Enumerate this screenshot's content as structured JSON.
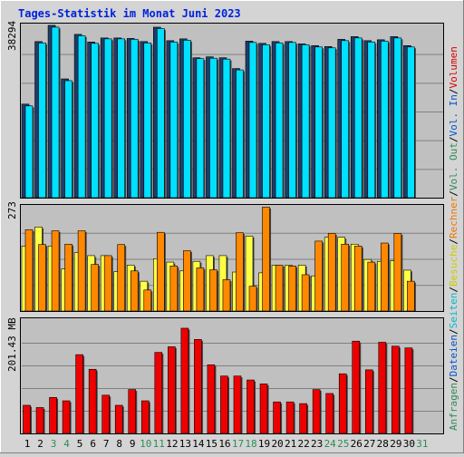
{
  "title": "Tages-Statistik im Monat Juni 2023",
  "colors": {
    "background": "#d4d4d4",
    "plot": "#c0c0c0",
    "grid": "#808080",
    "title": "#0022dd",
    "weekday": "#000000",
    "weekend": "#2e8b57"
  },
  "legend_right": [
    {
      "text": "Anfragen",
      "color": "#2e8b57"
    },
    {
      "text": "/",
      "color": "#000000"
    },
    {
      "text": "Dateien",
      "color": "#0055cc"
    },
    {
      "text": "/",
      "color": "#000000"
    },
    {
      "text": "Seiten",
      "color": "#00bbcc"
    },
    {
      "text": "/",
      "color": "#000000"
    },
    {
      "text": "Besuche",
      "color": "#cccc00"
    },
    {
      "text": "/",
      "color": "#000000"
    },
    {
      "text": "Rechner",
      "color": "#ee7700"
    },
    {
      "text": "/",
      "color": "#000000"
    },
    {
      "text": "Vol. Out",
      "color": "#2e8b57"
    },
    {
      "text": "/",
      "color": "#000000"
    },
    {
      "text": "Vol. In",
      "color": "#0055cc"
    },
    {
      "text": "/",
      "color": "#000000"
    },
    {
      "text": "Volumen",
      "color": "#dd0000"
    }
  ],
  "chart_data": [
    {
      "type": "bar",
      "panel": "hits",
      "ylabel": "38294",
      "ymax": 38294,
      "categories": [
        "1",
        "2",
        "3",
        "4",
        "5",
        "6",
        "7",
        "8",
        "9",
        "10",
        "11",
        "12",
        "13",
        "14",
        "15",
        "16",
        "17",
        "18",
        "19",
        "20",
        "21",
        "22",
        "23",
        "24",
        "25",
        "26",
        "27",
        "28",
        "29",
        "30"
      ],
      "weekend_days": [
        "3",
        "4",
        "10",
        "11",
        "17",
        "18",
        "24",
        "25"
      ],
      "series": [
        {
          "name": "Anfragen",
          "color": "#1f3d6b",
          "values": [
            20800,
            34700,
            38300,
            26400,
            36300,
            34600,
            35500,
            35500,
            35400,
            34700,
            37900,
            34900,
            35300,
            31100,
            31300,
            31100,
            28700,
            34800,
            34300,
            34700,
            34700,
            34200,
            33800,
            33600,
            35200,
            35800,
            34900,
            35100,
            35800,
            33800
          ]
        },
        {
          "name": "Dateien",
          "color": "#00e0ff",
          "values": [
            20400,
            34400,
            37900,
            26000,
            36000,
            34300,
            35300,
            35300,
            35200,
            34400,
            37600,
            34600,
            35000,
            30900,
            31000,
            30800,
            28400,
            34500,
            34000,
            34400,
            34500,
            34000,
            33500,
            33300,
            34900,
            35500,
            34600,
            34800,
            35500,
            33500
          ]
        }
      ]
    },
    {
      "type": "bar",
      "panel": "visits",
      "ylabel": "273",
      "ymax": 273,
      "categories": [
        "1",
        "2",
        "3",
        "4",
        "5",
        "6",
        "7",
        "8",
        "9",
        "10",
        "11",
        "12",
        "13",
        "14",
        "15",
        "16",
        "17",
        "18",
        "19",
        "20",
        "21",
        "22",
        "23",
        "24",
        "25",
        "26",
        "27",
        "28",
        "29",
        "30"
      ],
      "series": [
        {
          "name": "Besuche",
          "color": "#ffff44",
          "values": [
            170,
            220,
            170,
            110,
            153,
            145,
            145,
            103,
            120,
            78,
            137,
            128,
            105,
            130,
            145,
            145,
            102,
            196,
            100,
            120,
            120,
            120,
            92,
            193,
            193,
            175,
            135,
            130,
            132,
            107
          ]
        },
        {
          "name": "Rechner",
          "color": "#ff8800",
          "values": [
            213,
            174,
            210,
            175,
            210,
            122,
            145,
            174,
            105,
            55,
            206,
            118,
            158,
            113,
            108,
            82,
            205,
            65,
            272,
            120,
            118,
            95,
            183,
            203,
            175,
            170,
            128,
            178,
            203,
            78
          ]
        }
      ]
    },
    {
      "type": "bar",
      "panel": "volume",
      "ylabel": "201.43 MB",
      "ymax": 201.43,
      "categories": [
        "1",
        "2",
        "3",
        "4",
        "5",
        "6",
        "7",
        "8",
        "9",
        "10",
        "11",
        "12",
        "13",
        "14",
        "15",
        "16",
        "17",
        "18",
        "19",
        "20",
        "21",
        "22",
        "23",
        "24",
        "25",
        "26",
        "27",
        "28",
        "29",
        "30"
      ],
      "series": [
        {
          "name": "Volumen",
          "color": "#ee0000",
          "values": [
            50,
            46,
            64,
            58,
            140,
            114,
            68,
            50,
            78,
            58,
            144,
            154,
            187,
            167,
            122,
            102,
            102,
            95,
            88,
            56,
            56,
            53,
            78,
            71,
            106,
            164,
            113,
            162,
            155,
            152
          ]
        }
      ]
    }
  ],
  "x_axis": {
    "labels": [
      "1",
      "2",
      "3",
      "4",
      "5",
      "6",
      "7",
      "8",
      "9",
      "10",
      "11",
      "12",
      "13",
      "14",
      "15",
      "16",
      "17",
      "18",
      "19",
      "20",
      "21",
      "22",
      "23",
      "24",
      "25",
      "26",
      "27",
      "28",
      "29",
      "30",
      "31"
    ],
    "weekend": [
      "3",
      "4",
      "10",
      "11",
      "17",
      "18",
      "24",
      "25",
      "31"
    ]
  }
}
